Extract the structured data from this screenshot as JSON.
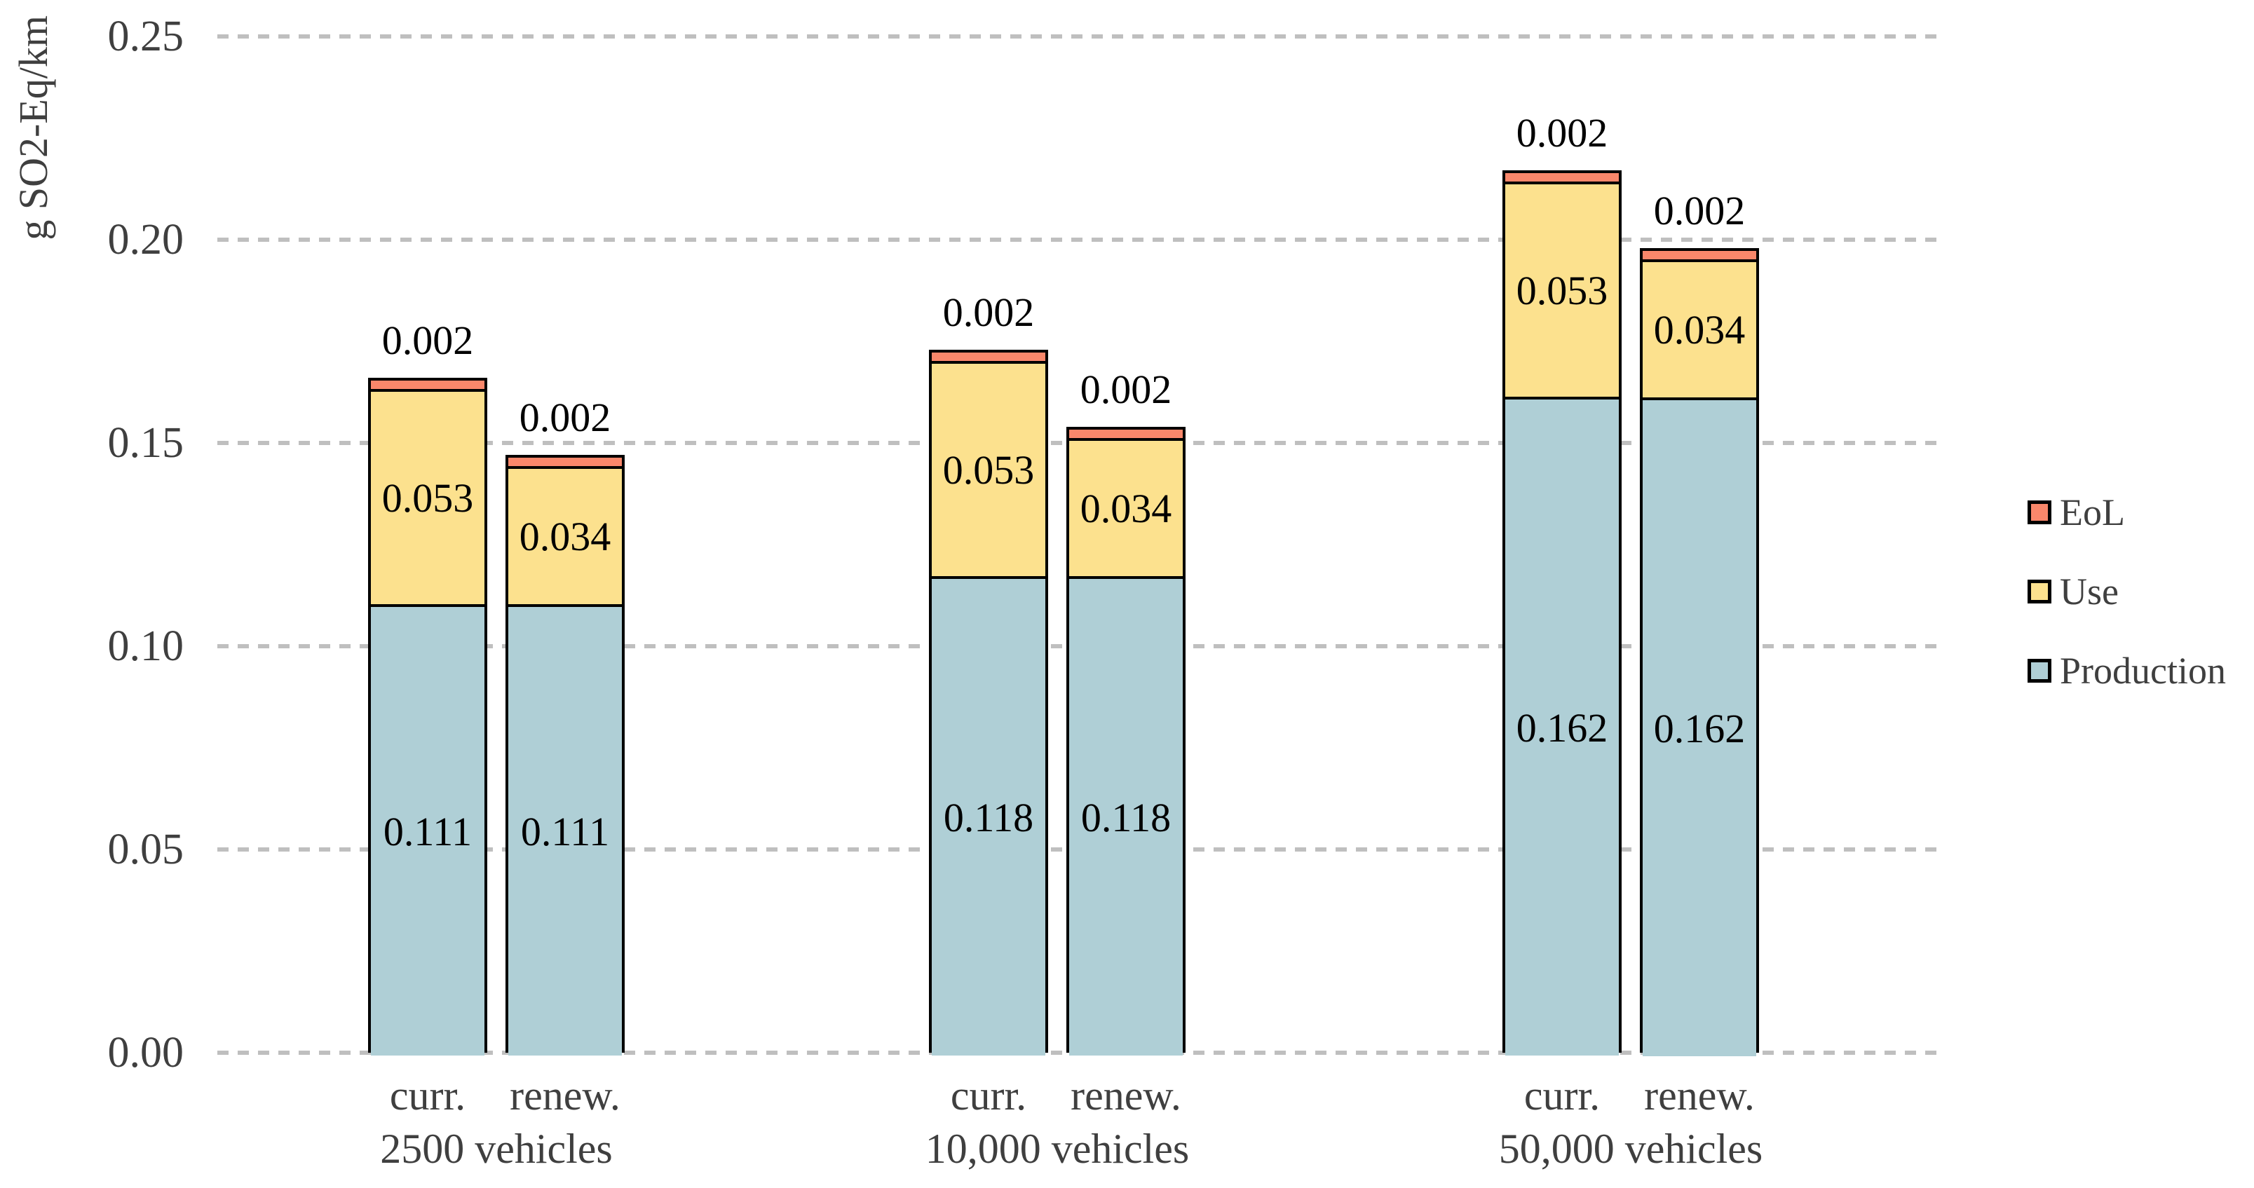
{
  "chart_data": {
    "type": "bar",
    "stacked": true,
    "title": "",
    "ylabel": "g SO2-Eq/km",
    "xlabel": "",
    "ylim": [
      0,
      0.25
    ],
    "yticks": [
      0,
      0.05,
      0.1,
      0.15,
      0.2,
      0.25
    ],
    "grid": "horizontal-dashed",
    "legend_position": "right",
    "value_label_decimals": 3,
    "categories": [
      "2500 vehicles",
      "10,000 vehicles",
      "50,000 vehicles"
    ],
    "subcategories": [
      "curr.",
      "renew."
    ],
    "series": [
      {
        "name": "Production",
        "color": "#afcfd6",
        "label_placement": "inside",
        "values": [
          [
            0.111,
            0.111
          ],
          [
            0.118,
            0.118
          ],
          [
            0.162,
            0.162
          ]
        ]
      },
      {
        "name": "Use",
        "color": "#fce18e",
        "label_placement": "inside",
        "values": [
          [
            0.053,
            0.034
          ],
          [
            0.053,
            0.034
          ],
          [
            0.053,
            0.034
          ]
        ]
      },
      {
        "name": "EoL",
        "color": "#f9876b",
        "label_placement": "above",
        "values": [
          [
            0.002,
            0.002
          ],
          [
            0.002,
            0.002
          ],
          [
            0.002,
            0.002
          ]
        ]
      }
    ],
    "legend_entries": [
      "EoL",
      "Use",
      "Production"
    ]
  },
  "colors": {
    "gridline": "#bfbfbf",
    "bar_border": "#000000",
    "axis_text": "#3f3f3f",
    "value_text": "#000000"
  }
}
